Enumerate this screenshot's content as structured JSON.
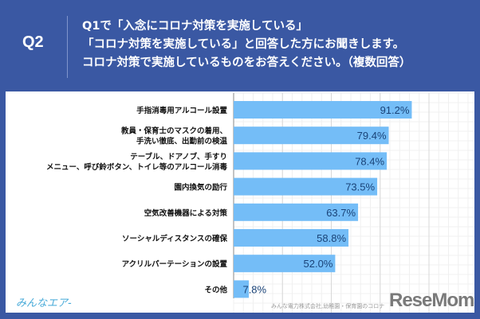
{
  "header": {
    "qnum": "Q2",
    "lines": [
      "Q1で「入念にコロナ対策を実施している」",
      "「コロナ対策を実施している」と回答した方にお聞きします。",
      "コロナ対策で実施しているものをお答えください。（複数回答）"
    ]
  },
  "footer": {
    "logo": "みんなエア-",
    "source": "みんな電力株式会社,幼稚園・保育園のコロナ",
    "brand": "ReseMom"
  },
  "colors": {
    "background": "#3a58a3",
    "bar": "#74bdf7",
    "value_text": "#1a4378"
  },
  "chart_data": {
    "type": "bar",
    "orientation": "horizontal",
    "xlim": [
      0,
      100
    ],
    "grid": true,
    "categories": [
      [
        "手指消毒用アルコール設置"
      ],
      [
        "教員・保育士のマスクの着用、",
        "手洗い徹底、出勤前の検温"
      ],
      [
        "テーブル、ドアノブ、手すり",
        "メニュー、呼び鈴ボタン、トイレ等のアルコール消毒"
      ],
      [
        "園内換気の励行"
      ],
      [
        "空気改善機器による対策"
      ],
      [
        "ソーシャルディスタンスの確保"
      ],
      [
        "アクリルパーテーションの設置"
      ],
      [
        "その他"
      ]
    ],
    "values": [
      91.2,
      79.4,
      78.4,
      73.5,
      63.7,
      58.8,
      52.0,
      7.8
    ],
    "labels": [
      "91.2%",
      "79.4%",
      "78.4%",
      "73.5%",
      "63.7%",
      "58.8%",
      "52.0%",
      "7.8%"
    ]
  }
}
